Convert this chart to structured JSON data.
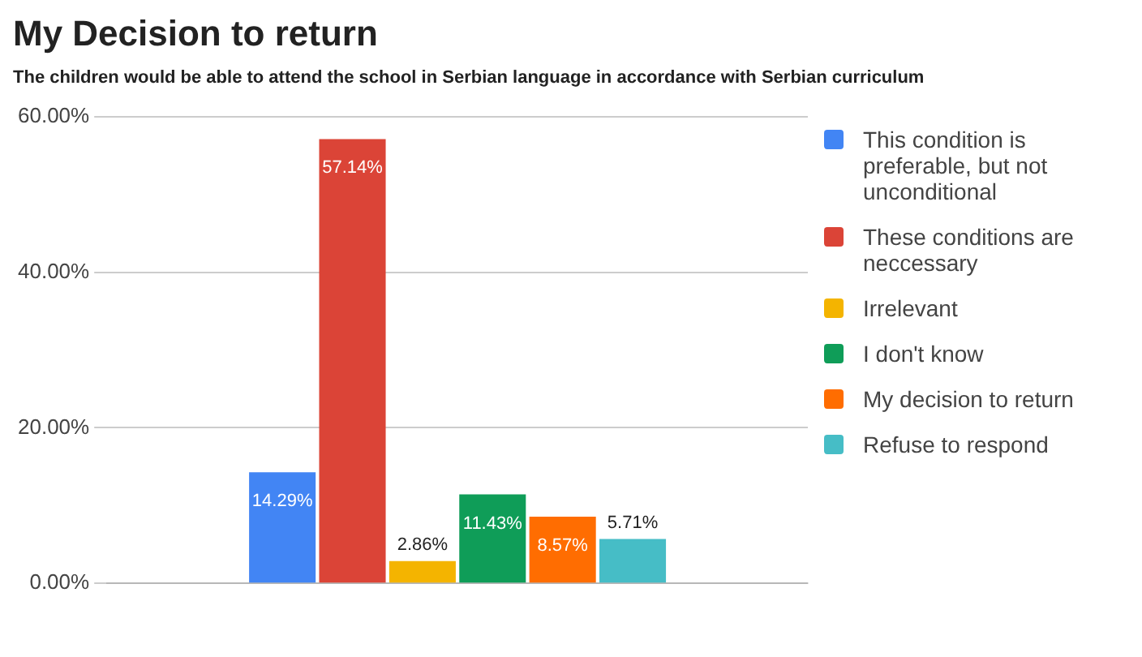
{
  "chart_data": {
    "type": "bar",
    "title": "My Decision to return",
    "subtitle": "The children would be able to attend the school in Serbian language in accordance with Serbian curriculum",
    "categories": [
      null
    ],
    "series": [
      {
        "name": "This condition is preferable, but not unconditional",
        "color": "#4285f4",
        "values": [
          14.29
        ],
        "value_labels": [
          "14.29%"
        ]
      },
      {
        "name": "These conditions are neccessary",
        "color": "#db4437",
        "values": [
          57.14
        ],
        "value_labels": [
          "57.14%"
        ]
      },
      {
        "name": "Irrelevant",
        "color": "#f4b400",
        "values": [
          2.86
        ],
        "value_labels": [
          "2.86%"
        ]
      },
      {
        "name": "I don't know",
        "color": "#0f9d58",
        "values": [
          11.43
        ],
        "value_labels": [
          "11.43%"
        ]
      },
      {
        "name": "My decision to return",
        "color": "#ff6d01",
        "values": [
          8.57
        ],
        "value_labels": [
          "8.57%"
        ]
      },
      {
        "name": "Refuse to respond",
        "color": "#46bdc6",
        "values": [
          5.71
        ],
        "value_labels": [
          "5.71%"
        ]
      }
    ],
    "ylim": [
      0,
      60
    ],
    "yticks": [
      {
        "value": 0,
        "label": "0.00%"
      },
      {
        "value": 20,
        "label": "20.00%"
      },
      {
        "value": 40,
        "label": "40.00%"
      },
      {
        "value": 60,
        "label": "60.00%"
      }
    ],
    "grid": "y",
    "legend": "right"
  }
}
